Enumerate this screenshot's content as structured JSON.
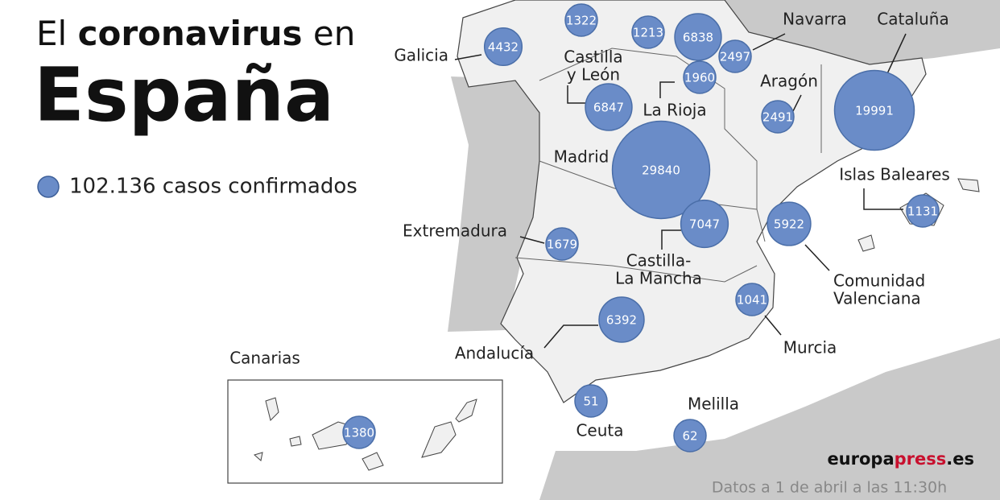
{
  "title": {
    "prefix": "El",
    "bold": "coronavirus",
    "suffix": "en",
    "main": "España"
  },
  "legend": "102.136 casos confirmados",
  "regions": [
    {
      "cases": 1322
    },
    {
      "cases": 1213
    },
    {
      "cases": 6838
    },
    {
      "name": [
        "Navarra"
      ],
      "cases": 2497
    },
    {
      "name": [
        "Galicia"
      ],
      "cases": 4432
    },
    {
      "name": [
        "La Rioja"
      ],
      "cases": 1960
    },
    {
      "name": [
        "Castilla",
        "y León"
      ],
      "cases": 6847
    },
    {
      "name": [
        "Aragón"
      ],
      "cases": 2491
    },
    {
      "name": [
        "Cataluña"
      ],
      "cases": 19991
    },
    {
      "name": [
        "Madrid"
      ],
      "cases": 29840
    },
    {
      "name": [
        "Castilla-",
        "La Mancha"
      ],
      "cases": 7047
    },
    {
      "name": [
        "Comunidad",
        "Valenciana"
      ],
      "cases": 5922
    },
    {
      "name": [
        "Islas Baleares"
      ],
      "cases": 1131
    },
    {
      "name": [
        "Extremadura"
      ],
      "cases": 1679
    },
    {
      "name": [
        "Murcia"
      ],
      "cases": 1041
    },
    {
      "name": [
        "Andalucía"
      ],
      "cases": 6392
    },
    {
      "name": [
        "Ceuta"
      ],
      "cases": 51
    },
    {
      "name": [
        "Melilla"
      ],
      "cases": 62
    },
    {
      "name": [
        "Canarias"
      ],
      "cases": 1380
    }
  ],
  "brand": {
    "a": "europa",
    "b": "press",
    "c": ".es"
  },
  "note": "Datos a 1 de abril a las 11:30h"
}
